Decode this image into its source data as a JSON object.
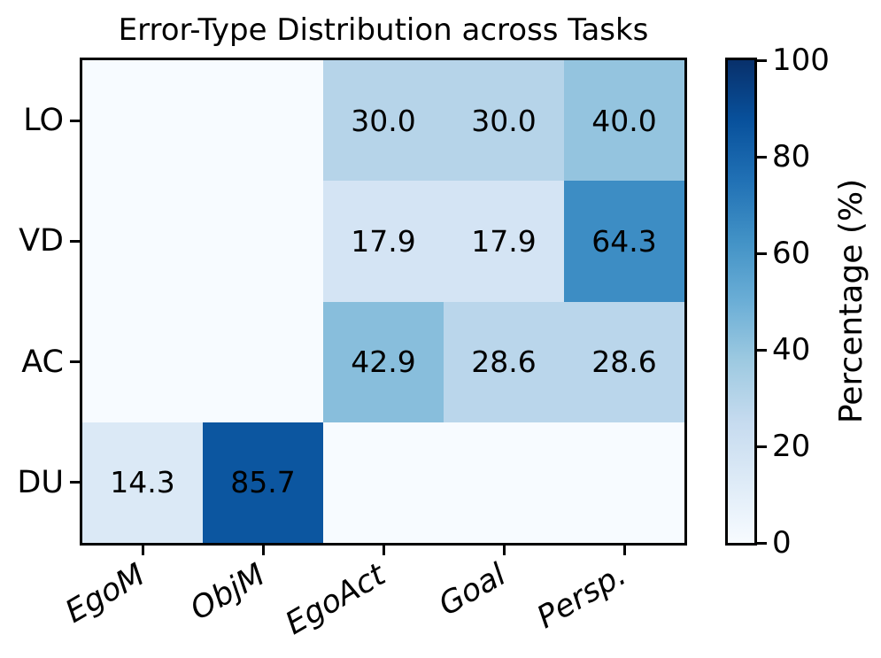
{
  "title": "Error-Type Distribution across Tasks",
  "colors": {
    "background": "#ffffff",
    "axis_border": "#000000",
    "text": "#000000"
  },
  "chart_data": {
    "type": "heatmap",
    "title": "Error-Type Distribution across Tasks",
    "rows": [
      "LO",
      "VD",
      "AC",
      "DU"
    ],
    "columns": [
      "EgoM",
      "ObjM",
      "EgoAct",
      "Goal",
      "Persp."
    ],
    "values": [
      [
        0,
        0,
        30.0,
        30.0,
        40.0
      ],
      [
        0,
        0,
        17.9,
        17.9,
        64.3
      ],
      [
        0,
        0,
        42.9,
        28.6,
        28.6
      ],
      [
        14.3,
        85.7,
        0,
        0,
        0
      ]
    ],
    "value_format": "one_decimal_hide_zero",
    "colorbar": {
      "label": "Percentage (%)",
      "ticks": [
        0,
        20,
        40,
        60,
        80,
        100
      ],
      "min": 0,
      "max": 100
    },
    "colormap": "Blues",
    "colormap_stops": [
      {
        "t": 0.0,
        "color": "#f7fbff"
      },
      {
        "t": 0.125,
        "color": "#deebf7"
      },
      {
        "t": 0.25,
        "color": "#c6dbef"
      },
      {
        "t": 0.375,
        "color": "#9ecae1"
      },
      {
        "t": 0.5,
        "color": "#6baed6"
      },
      {
        "t": 0.625,
        "color": "#4292c6"
      },
      {
        "t": 0.75,
        "color": "#2171b5"
      },
      {
        "t": 0.875,
        "color": "#08519c"
      },
      {
        "t": 1.0,
        "color": "#08306b"
      }
    ],
    "x_tick_rotation_deg": 30,
    "grid": false,
    "legend": false
  }
}
